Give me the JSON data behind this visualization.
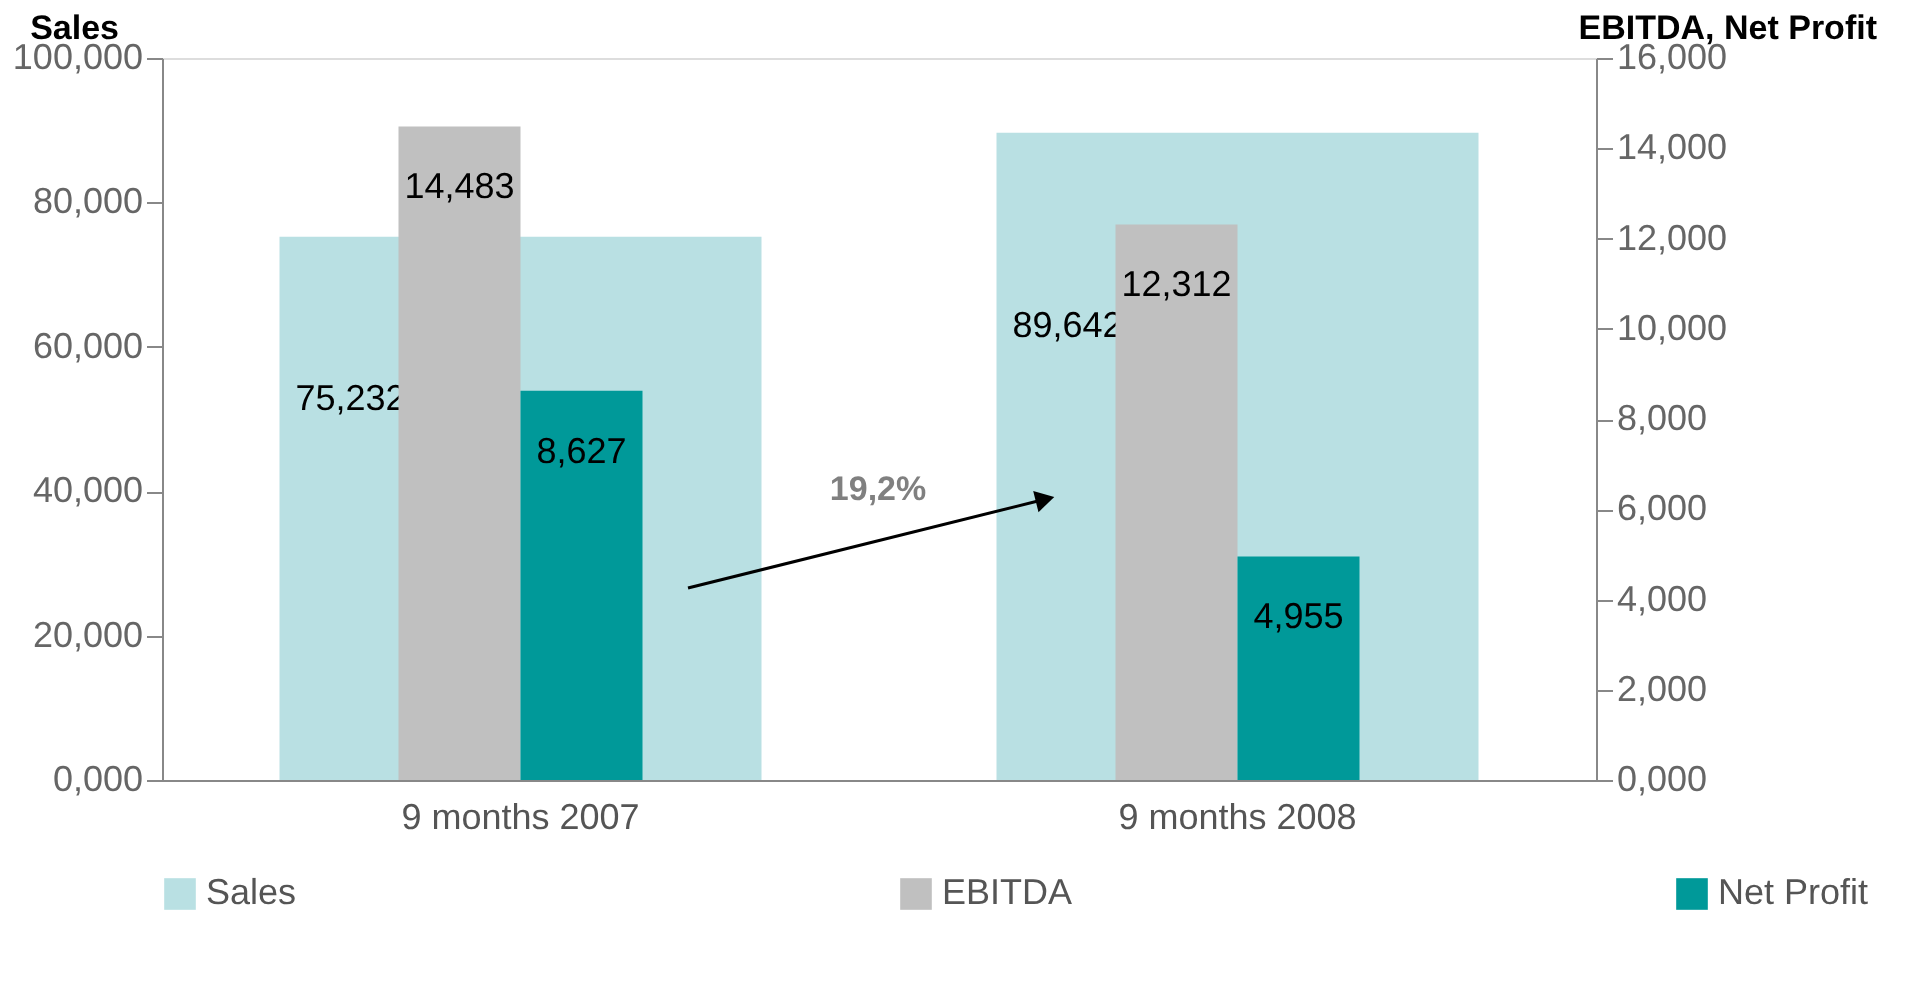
{
  "chart_data": {
    "type": "bar",
    "categories": [
      "9 months 2007",
      "9 months 2008"
    ],
    "series": [
      {
        "name": "Sales",
        "color": "#b9e0e3",
        "values": [
          75.232,
          89.642
        ],
        "value_labels": [
          "75,232",
          "89,642"
        ]
      },
      {
        "name": "EBITDA",
        "color": "#c0c0c0",
        "values": [
          14.483,
          12.312
        ],
        "value_labels": [
          "14,483",
          "12,312"
        ],
        "axis": "y2"
      },
      {
        "name": "Net Profit",
        "color": "#009999",
        "values": [
          8.627,
          4.955
        ],
        "value_labels": [
          "8,627",
          "4,955"
        ],
        "axis": "y2"
      }
    ],
    "ylabel": "Sales",
    "y2label": "EBITDA, Net Profit",
    "ylim": [
      0,
      100
    ],
    "yticks": [
      {
        "value": 0,
        "label": "0,000"
      },
      {
        "value": 20,
        "label": "20,000"
      },
      {
        "value": 40,
        "label": "40,000"
      },
      {
        "value": 60,
        "label": "60,000"
      },
      {
        "value": 80,
        "label": "80,000"
      },
      {
        "value": 100,
        "label": "100,000"
      }
    ],
    "y2lim": [
      0,
      16
    ],
    "y2ticks": [
      {
        "value": 0,
        "label": "0,000"
      },
      {
        "value": 2,
        "label": "2,000"
      },
      {
        "value": 4,
        "label": "4,000"
      },
      {
        "value": 6,
        "label": "6,000"
      },
      {
        "value": 8,
        "label": "8,000"
      },
      {
        "value": 10,
        "label": "10,000"
      },
      {
        "value": 12,
        "label": "12,000"
      },
      {
        "value": 14,
        "label": "14,000"
      },
      {
        "value": 16,
        "label": "16,000"
      }
    ],
    "legend": "bottom",
    "grid": false,
    "annotations": [
      "19,2%"
    ]
  }
}
